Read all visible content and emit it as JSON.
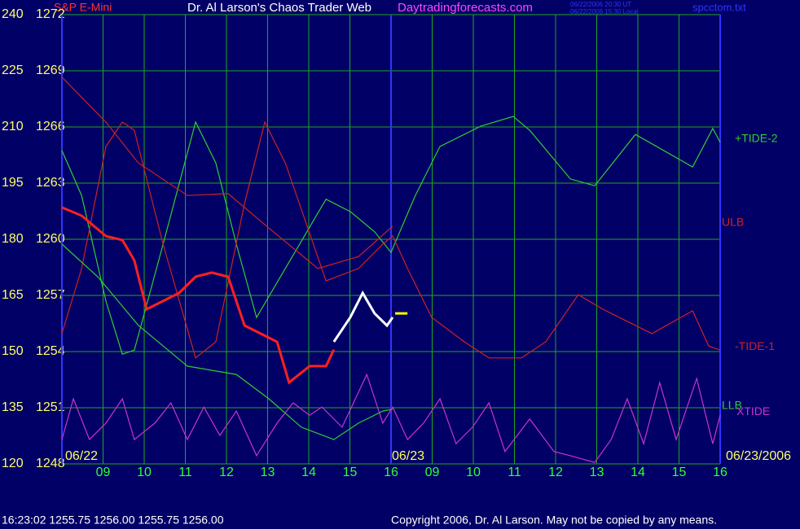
{
  "chart_data": {
    "type": "line",
    "symbol": "S&P E-Mini",
    "title": "Dr. Al Larson's Chaos Trader Web",
    "site": "Daytradingforecasts.com",
    "timestamps": [
      "06/22/2006 20:30 UT",
      "06/22/2006 15:30 Local"
    ],
    "file": "spcctom.txt",
    "date_labels": [
      "06/22",
      "06/23",
      "06/23/2006"
    ],
    "status": "16:23:02  1255.75 1256.00 1255.75 1256.00",
    "copyright": "Copyright 2006, Dr. Al Larson. May not be copied by any means.",
    "xlim": [
      0,
      16
    ],
    "xticks": [
      {
        "value": 1,
        "label": "09"
      },
      {
        "value": 2,
        "label": "10"
      },
      {
        "value": 3,
        "label": "11"
      },
      {
        "value": 4,
        "label": "12"
      },
      {
        "value": 5,
        "label": "13"
      },
      {
        "value": 6,
        "label": "14"
      },
      {
        "value": 7,
        "label": "15"
      },
      {
        "value": 8,
        "label": "16"
      },
      {
        "value": 9,
        "label": "09"
      },
      {
        "value": 10,
        "label": "10"
      },
      {
        "value": 11,
        "label": "11"
      },
      {
        "value": 12,
        "label": "12"
      },
      {
        "value": 13,
        "label": "13"
      },
      {
        "value": 14,
        "label": "14"
      },
      {
        "value": 15,
        "label": "15"
      },
      {
        "value": 16,
        "label": "16"
      }
    ],
    "ylim": [
      120,
      240
    ],
    "yticks": [
      120,
      135,
      150,
      165,
      180,
      195,
      210,
      225,
      240
    ],
    "y2lim": [
      1248,
      1272
    ],
    "y2ticks": [
      1248,
      1251,
      1254,
      1257,
      1260,
      1263,
      1266,
      1269,
      1272
    ],
    "grid": true,
    "grid_color": "#1fa81f",
    "series": [
      {
        "name": "+TIDE-2",
        "color": "#33cc33",
        "x": [
          0,
          0.48,
          1.07,
          1.47,
          1.76,
          2.46,
          3.25,
          3.74,
          4.24,
          4.73,
          5.43,
          6.42,
          7.01,
          7.6,
          8.0,
          8.59,
          9.19,
          10.18,
          10.97,
          11.37,
          12.36,
          12.95,
          13.94,
          15.33,
          15.82,
          16
        ],
        "values": [
          203.7,
          191.7,
          163.5,
          149.3,
          150.4,
          178.7,
          211.3,
          200.4,
          178.7,
          159.1,
          172.2,
          190.7,
          187.4,
          182.0,
          176.5,
          191.7,
          204.8,
          210.2,
          212.8,
          209.1,
          196.1,
          194.3,
          208.0,
          199.3,
          209.6,
          205.9
        ]
      },
      {
        "name": "ULB",
        "color": "#cc2222",
        "x": [
          0,
          1.07,
          1.86,
          3.05,
          4.04,
          5.03,
          6.22,
          7.21,
          8.04
        ],
        "values": [
          223.3,
          211.3,
          200.4,
          191.7,
          192.2,
          183.0,
          172.2,
          175.4,
          183.5
        ]
      },
      {
        "name": "-TIDE-1",
        "color": "#cc2222",
        "x": [
          0,
          0.48,
          1.07,
          1.47,
          1.76,
          2.46,
          3.25,
          3.74,
          4.44,
          4.93,
          5.43,
          6.42,
          7.21,
          7.8,
          8.04,
          8.4,
          8.99,
          9.78,
          10.38,
          11.17,
          11.76,
          12.55,
          13.15,
          14.34,
          15.33,
          15.72,
          16
        ],
        "values": [
          154.8,
          172.2,
          204.8,
          211.3,
          209.1,
          178.7,
          148.3,
          152.6,
          189.6,
          211.3,
          200.4,
          168.9,
          172.2,
          178.7,
          180.9,
          172.2,
          159.1,
          152.6,
          148.3,
          148.3,
          152.6,
          165.2,
          161.3,
          154.8,
          160.9,
          151.5,
          150.4
        ]
      },
      {
        "name": "LLB",
        "color": "#33cc33",
        "x": [
          0,
          0.87,
          1.86,
          3.05,
          4.24,
          5.03,
          5.82,
          6.61,
          7.21,
          7.8,
          8.04
        ],
        "values": [
          178.7,
          170.0,
          157.0,
          146.1,
          143.9,
          137.4,
          129.8,
          126.5,
          130.9,
          134.1,
          134.6
        ]
      },
      {
        "name": "XTIDE",
        "color": "#cc33cc",
        "x": [
          0,
          0.28,
          0.67,
          1.07,
          1.47,
          1.76,
          2.26,
          2.65,
          3.05,
          3.45,
          3.84,
          4.24,
          4.73,
          5.23,
          5.62,
          6.02,
          6.32,
          6.81,
          7.41,
          7.8,
          8.04,
          8.4,
          8.79,
          9.19,
          9.58,
          9.98,
          10.38,
          10.77,
          11.37,
          11.96,
          12.36,
          12.95,
          13.35,
          13.74,
          14.14,
          14.53,
          14.93,
          15.43,
          15.82,
          16
        ],
        "values": [
          126.5,
          137.4,
          126.5,
          130.9,
          137.4,
          126.5,
          130.9,
          136.3,
          126.5,
          135.2,
          127.6,
          134.1,
          122.2,
          130.9,
          136.3,
          133.0,
          135.2,
          129.8,
          143.9,
          130.9,
          135.2,
          126.5,
          130.9,
          137.4,
          125.4,
          129.8,
          136.3,
          123.3,
          132.0,
          123.3,
          122.2,
          120.4,
          126.5,
          137.4,
          125.4,
          141.7,
          126.5,
          142.8,
          125.4,
          133.0
        ]
      },
      {
        "color": "#ff2020",
        "axis": "y2",
        "x": [
          0,
          0.48,
          1.07,
          1.47,
          1.76,
          2.06,
          2.46,
          2.85,
          3.25,
          3.64,
          4.04,
          4.44,
          4.83,
          5.23,
          5.52,
          6.02,
          6.42,
          6.61
        ],
        "values": [
          1261.7,
          1261.26,
          1260.17,
          1259.96,
          1258.87,
          1256.26,
          1256.7,
          1257.13,
          1258.0,
          1258.22,
          1258.0,
          1255.39,
          1254.96,
          1254.52,
          1252.35,
          1253.22,
          1253.22,
          1254.1
        ]
      },
      {
        "color": "#ffffff",
        "axis": "y2",
        "x": [
          6.61,
          7.01,
          7.31,
          7.6,
          7.9,
          8.04
        ],
        "values": [
          1254.52,
          1255.83,
          1257.13,
          1256.04,
          1255.39,
          1255.83
        ]
      },
      {
        "color": "#ffff00",
        "axis": "y2",
        "x": [
          8.1,
          8.4
        ],
        "values": [
          1256.04,
          1256.04
        ]
      }
    ]
  }
}
